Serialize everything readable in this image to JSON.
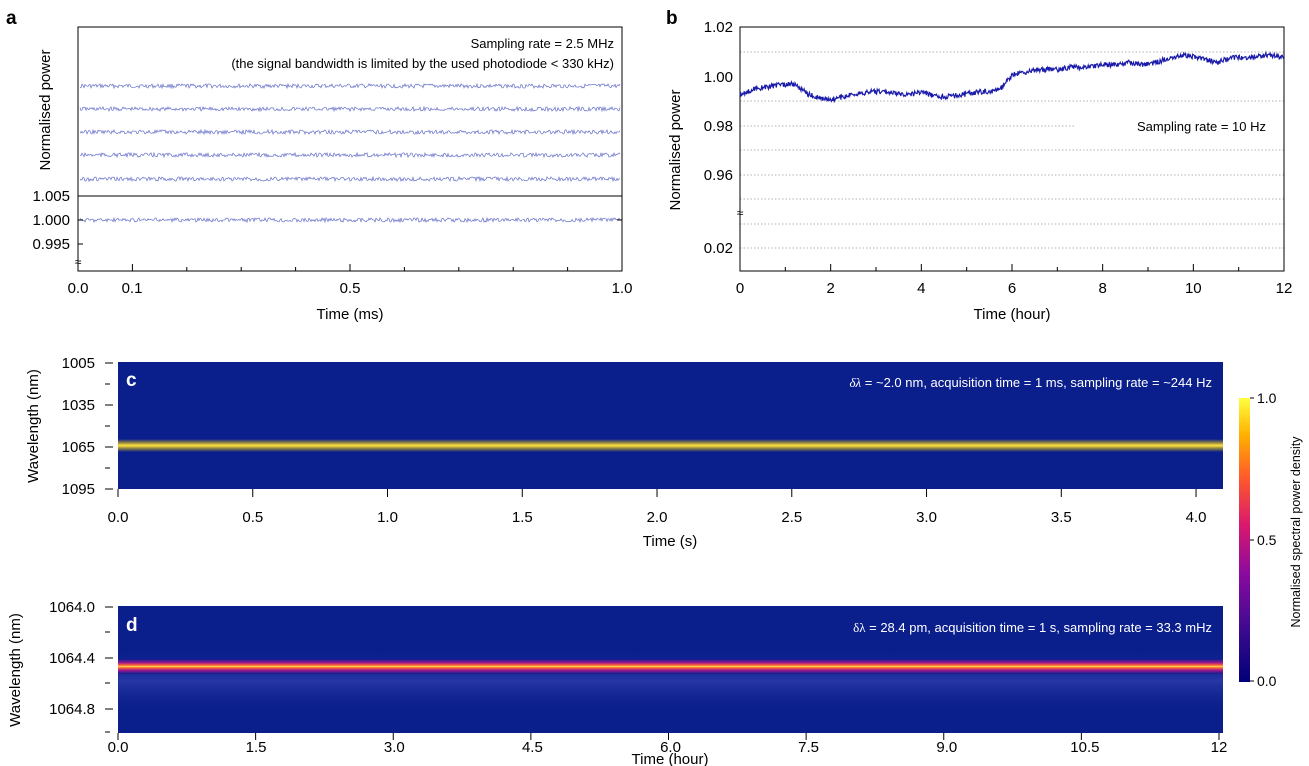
{
  "chart_data": [
    {
      "panel": "a",
      "type": "line",
      "xlabel": "Time (ms)",
      "ylabel": "Normalised power",
      "xticks": [
        "0.0",
        "0.1",
        "0.5",
        "1.0"
      ],
      "xlim": [
        0.0,
        1.0
      ],
      "yticks": [
        "0.995",
        "1.000",
        "1.005"
      ],
      "annotation_lines": [
        "Sampling rate = 2.5 MHz",
        "(the signal bandwidth is limited by the used photodiode < 330 kHz)"
      ],
      "series": [
        {
          "x": [
            0.0,
            1.0
          ],
          "y": [
            1.0,
            1.0
          ]
        },
        {
          "x": [
            0.0,
            1.0
          ],
          "y": [
            1.0,
            1.0
          ]
        },
        {
          "x": [
            0.0,
            1.0
          ],
          "y": [
            1.0,
            1.0
          ]
        },
        {
          "x": [
            0.0,
            1.0
          ],
          "y": [
            1.0,
            1.0
          ]
        },
        {
          "x": [
            0.0,
            1.0
          ],
          "y": [
            1.0,
            1.0
          ]
        },
        {
          "x": [
            0.0,
            1.0
          ],
          "y": [
            1.0,
            1.0
          ]
        }
      ],
      "line_color": "#4a56c0"
    },
    {
      "panel": "b",
      "type": "line",
      "xlabel": "Time (hour)",
      "ylabel": "Normalised power",
      "xticks": [
        "0",
        "2",
        "4",
        "6",
        "8",
        "10",
        "12"
      ],
      "xlim": [
        0,
        12
      ],
      "yticks": [
        "1.02",
        "1.00",
        "0.98",
        "0.96",
        "0.02"
      ],
      "annotation": "Sampling rate = 10 Hz",
      "series": [
        {
          "x": [
            0,
            0.3,
            0.6,
            1.0,
            1.2,
            1.5,
            1.8,
            2.1,
            2.5,
            2.9,
            3.2,
            3.5,
            3.8,
            4.0,
            4.3,
            4.6,
            5.0,
            5.3,
            5.6,
            5.8,
            6.0,
            6.3,
            6.6,
            7.0,
            7.3,
            7.6,
            8.0,
            8.3,
            8.6,
            8.9,
            9.2,
            9.5,
            9.8,
            10.1,
            10.5,
            10.9,
            11.3,
            11.6,
            12.0
          ],
          "y": [
            0.993,
            0.995,
            0.996,
            0.997,
            0.997,
            0.993,
            0.991,
            0.991,
            0.993,
            0.994,
            0.994,
            0.993,
            0.993,
            0.994,
            0.992,
            0.992,
            0.993,
            0.994,
            0.994,
            0.996,
            1.001,
            1.002,
            1.003,
            1.003,
            1.004,
            1.004,
            1.005,
            1.005,
            1.006,
            1.005,
            1.006,
            1.008,
            1.009,
            1.008,
            1.006,
            1.008,
            1.008,
            1.009,
            1.008
          ]
        }
      ],
      "line_color": "#1c1caa"
    },
    {
      "panel": "c",
      "type": "heatmap",
      "xlabel": "Time (s)",
      "ylabel": "Wavelength (nm)",
      "xticks": [
        "0.0",
        "0.5",
        "1.0",
        "1.5",
        "2.0",
        "2.5",
        "3.0",
        "3.5",
        "4.0"
      ],
      "xlim": [
        0.0,
        4.1
      ],
      "yticks": [
        "1005",
        "1035",
        "1065",
        "1095"
      ],
      "ylim": [
        1005,
        1095
      ],
      "line_center_nm": 1064.5,
      "annotation_symbol": "δλ",
      "annotation_rest": " = ~2.0 nm, acquisition time = 1 ms, sampling rate  = ~244 Hz"
    },
    {
      "panel": "d",
      "type": "heatmap",
      "xlabel": "Time (hour)",
      "ylabel": "Wavelength (nm)",
      "xticks": [
        "0.0",
        "1.5",
        "3.0",
        "4.5",
        "6.0",
        "7.5",
        "9.0",
        "10.5",
        "12"
      ],
      "xlim": [
        0,
        12
      ],
      "yticks": [
        "1064.0",
        "1064.4",
        "1064.8"
      ],
      "ylim": [
        1064.0,
        1065.0
      ],
      "line_center_nm": 1064.49,
      "annotation_symbol": "δλ",
      "annotation_rest": " = 28.4 pm, acquisition time = 1 s, sampling rate  = 33.3 mHz"
    }
  ],
  "colorbar": {
    "label": "Normalised spectral power density",
    "ticks": [
      "1.0",
      "0.5",
      "0.0"
    ],
    "range": [
      0.0,
      1.0
    ],
    "colors": [
      "#00007a",
      "#3a0a8e",
      "#8a0aa0",
      "#d8186e",
      "#ff5a2a",
      "#ffb000",
      "#ffff40"
    ]
  },
  "panel_letters": [
    "a",
    "b",
    "c",
    "d"
  ],
  "break_symbol": "≈"
}
